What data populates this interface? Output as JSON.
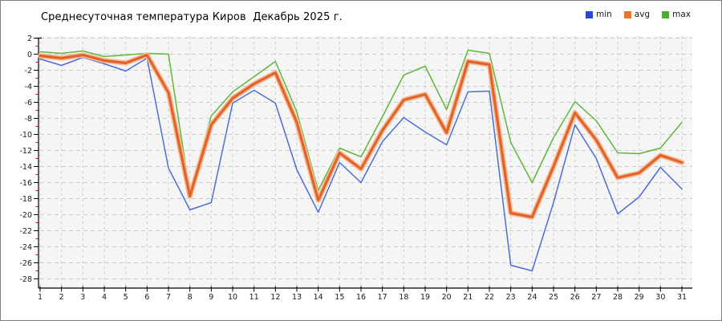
{
  "window": {
    "background": "#ffffff",
    "border_color": "#7e7e7e"
  },
  "chart_data": {
    "type": "line",
    "title": "Среднесуточная температура Киров  Декабрь 2025 г.",
    "xlabel": "",
    "ylabel": "",
    "categories": [
      1,
      2,
      3,
      4,
      5,
      6,
      7,
      8,
      9,
      10,
      11,
      12,
      13,
      14,
      15,
      16,
      17,
      18,
      19,
      20,
      21,
      22,
      23,
      24,
      25,
      26,
      27,
      28,
      29,
      30,
      31
    ],
    "series": [
      {
        "name": "min",
        "color": "#4a6fd6",
        "swatch": "#2b46d2",
        "width": 1.5,
        "values": [
          -0.6,
          -1.4,
          -0.4,
          -1.2,
          -2.1,
          -0.5,
          -14.2,
          -19.4,
          -18.5,
          -6.1,
          -4.5,
          -6.1,
          -14.4,
          -19.7,
          -13.5,
          -16.0,
          -10.9,
          -7.9,
          -9.7,
          -11.3,
          -4.7,
          -4.6,
          -26.3,
          -27.0,
          -18.5,
          -8.8,
          -13.0,
          -19.9,
          -17.8,
          -14.1,
          -16.8
        ]
      },
      {
        "name": "avg",
        "color": "#e2622b",
        "swatch": "#e8772e",
        "halo": "#f6bd96",
        "width": 3.2,
        "values": [
          -0.2,
          -0.5,
          -0.1,
          -0.8,
          -1.1,
          -0.1,
          -4.8,
          -17.7,
          -8.8,
          -5.5,
          -3.7,
          -2.3,
          -8.5,
          -18.2,
          -12.3,
          -14.3,
          -9.5,
          -5.7,
          -5.0,
          -9.8,
          -0.9,
          -1.3,
          -19.8,
          -20.3,
          -14.0,
          -7.3,
          -10.7,
          -15.4,
          -14.8,
          -12.6,
          -13.5
        ]
      },
      {
        "name": "max",
        "color": "#5fb73a",
        "swatch": "#49b021",
        "width": 1.5,
        "values": [
          0.3,
          0.1,
          0.4,
          -0.3,
          -0.1,
          0.1,
          0.0,
          -17.3,
          -7.7,
          -4.7,
          -2.8,
          -0.9,
          -7.2,
          -17.0,
          -11.7,
          -12.8,
          -7.8,
          -2.6,
          -1.5,
          -6.9,
          0.5,
          0.1,
          -11.0,
          -16.0,
          -10.4,
          -5.9,
          -8.3,
          -12.3,
          -12.4,
          -11.7,
          -8.5
        ]
      }
    ],
    "yticks": [
      2,
      0,
      -2,
      -4,
      -6,
      -8,
      -10,
      -12,
      -14,
      -16,
      -18,
      -20,
      -22,
      -24,
      -26,
      -28
    ],
    "ylim": [
      -29.2,
      2.3
    ],
    "grid": true,
    "legend_position": "top-right",
    "plot_bg": "#f5f5f5",
    "grid_color": "#cbcbcb",
    "axis_color": "#000000",
    "minor_tick_color": "#dd0000",
    "tick_label_color": "#1a1a1a"
  }
}
